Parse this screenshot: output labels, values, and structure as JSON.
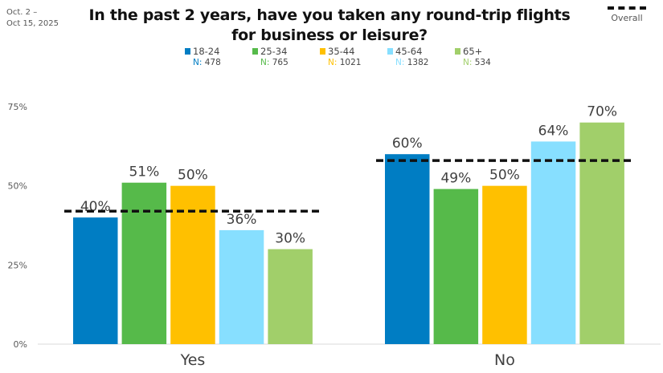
{
  "date_range": [
    "Oct. 2 –",
    "Oct 15, 2025"
  ],
  "title": "In the past 2 years, have you taken any round-trip flights for business or leisure?",
  "overall_legend_label": "Overall",
  "chart_data": {
    "type": "bar",
    "title": "In the past 2 years, have you taken any round-trip flights for business or leisure?",
    "categories": [
      "Yes",
      "No"
    ],
    "series": [
      {
        "name": "18-24",
        "n": "478",
        "color": "#007DC3",
        "values": [
          40,
          60
        ],
        "labels": [
          "40%",
          "60%"
        ]
      },
      {
        "name": "25-34",
        "n": "765",
        "color": "#56BA4A",
        "values": [
          51,
          49
        ],
        "labels": [
          "51%",
          "49%"
        ]
      },
      {
        "name": "35-44",
        "n": "1021",
        "color": "#FFC000",
        "values": [
          50,
          50
        ],
        "labels": [
          "50%",
          "50%"
        ]
      },
      {
        "name": "45-64",
        "n": "1382",
        "color": "#87DFFF",
        "values": [
          36,
          64
        ],
        "labels": [
          "36%",
          "64%"
        ]
      },
      {
        "name": "65+",
        "n": "534",
        "color": "#A1CF6A",
        "values": [
          30,
          70
        ],
        "labels": [
          "30%",
          "70%"
        ]
      }
    ],
    "overall": {
      "name": "Overall",
      "values": [
        42,
        58
      ],
      "style": "dashed",
      "color": "#111111"
    },
    "yticks": [
      "0%",
      "25%",
      "50%",
      "75%"
    ],
    "ytick_values": [
      0,
      25,
      50,
      75
    ],
    "ylim": [
      0,
      75
    ],
    "grid": false,
    "legend_placement": "top-center"
  }
}
